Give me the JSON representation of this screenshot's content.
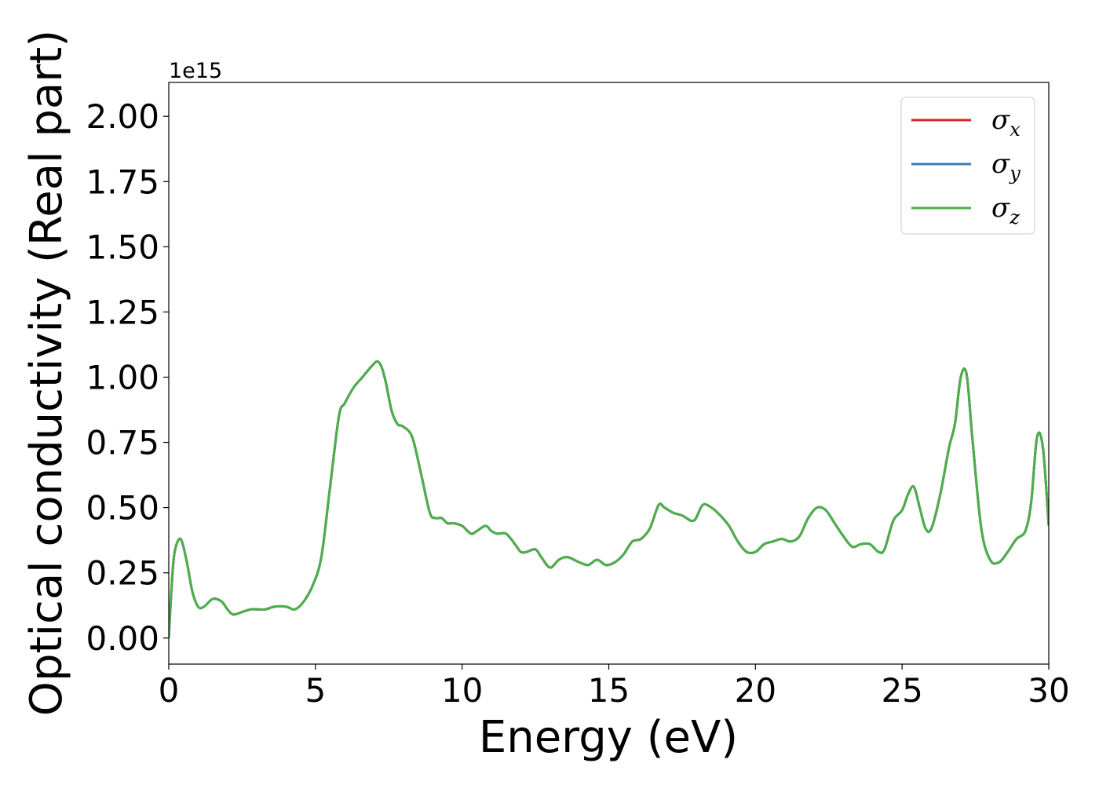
{
  "chart_data": {
    "type": "line",
    "title": "",
    "xlabel": "Energy (eV)",
    "ylabel": "Optical conductivity (Real part)",
    "y_offset_text": "1e15",
    "xlim": [
      0,
      30
    ],
    "ylim": [
      -0.1,
      2.13
    ],
    "x_ticks": [
      0,
      5,
      10,
      15,
      20,
      25,
      30
    ],
    "x_tick_labels": [
      "0",
      "5",
      "10",
      "15",
      "20",
      "25",
      "30"
    ],
    "y_ticks": [
      0,
      0.25,
      0.5,
      0.75,
      1.0,
      1.25,
      1.5,
      1.75,
      2.0
    ],
    "y_tick_labels": [
      "0.00",
      "0.25",
      "0.50",
      "0.75",
      "1.00",
      "1.25",
      "1.50",
      "1.75",
      "2.00"
    ],
    "grid": false,
    "legend_position": "top-right",
    "x": [
      0,
      0.1,
      0.2,
      0.4,
      0.6,
      0.8,
      1.0,
      1.2,
      1.5,
      1.8,
      2.0,
      2.2,
      2.5,
      2.8,
      3.0,
      3.3,
      3.6,
      4.0,
      4.3,
      4.6,
      4.9,
      5.2,
      5.5,
      5.8,
      6.0,
      6.3,
      6.6,
      6.9,
      7.1,
      7.25,
      7.4,
      7.6,
      7.8,
      8.0,
      8.3,
      8.6,
      8.9,
      9.1,
      9.3,
      9.5,
      9.7,
      10.0,
      10.3,
      10.5,
      10.8,
      11.0,
      11.2,
      11.5,
      11.8,
      12.0,
      12.2,
      12.5,
      12.7,
      13.0,
      13.3,
      13.6,
      14.0,
      14.3,
      14.6,
      14.9,
      15.2,
      15.5,
      15.8,
      16.1,
      16.4,
      16.7,
      16.9,
      17.2,
      17.5,
      17.9,
      18.2,
      18.5,
      18.8,
      19.1,
      19.4,
      19.7,
      20.0,
      20.3,
      20.6,
      20.9,
      21.2,
      21.5,
      21.8,
      22.1,
      22.4,
      22.7,
      23.0,
      23.3,
      23.6,
      23.9,
      24.2,
      24.4,
      24.7,
      25.0,
      25.2,
      25.4,
      25.6,
      25.8,
      26.0,
      26.3,
      26.6,
      26.8,
      27.0,
      27.2,
      27.4,
      27.7,
      28.0,
      28.3,
      28.6,
      28.9,
      29.2,
      29.4,
      29.6,
      29.8,
      30.0
    ],
    "series": [
      {
        "name": "σx",
        "color": "#d62728",
        "y": [
          0.0,
          0.2,
          0.33,
          0.38,
          0.3,
          0.18,
          0.12,
          0.12,
          0.15,
          0.14,
          0.11,
          0.09,
          0.1,
          0.11,
          0.11,
          0.11,
          0.12,
          0.12,
          0.11,
          0.14,
          0.2,
          0.31,
          0.58,
          0.85,
          0.9,
          0.96,
          1.0,
          1.04,
          1.06,
          1.04,
          0.98,
          0.87,
          0.82,
          0.81,
          0.77,
          0.63,
          0.48,
          0.46,
          0.46,
          0.44,
          0.44,
          0.43,
          0.4,
          0.41,
          0.43,
          0.41,
          0.4,
          0.4,
          0.36,
          0.33,
          0.33,
          0.34,
          0.31,
          0.27,
          0.3,
          0.31,
          0.29,
          0.28,
          0.3,
          0.28,
          0.29,
          0.32,
          0.37,
          0.38,
          0.42,
          0.51,
          0.5,
          0.48,
          0.47,
          0.45,
          0.51,
          0.5,
          0.47,
          0.43,
          0.37,
          0.33,
          0.33,
          0.36,
          0.37,
          0.38,
          0.37,
          0.39,
          0.46,
          0.5,
          0.49,
          0.44,
          0.39,
          0.35,
          0.36,
          0.36,
          0.33,
          0.34,
          0.45,
          0.49,
          0.55,
          0.58,
          0.5,
          0.42,
          0.42,
          0.55,
          0.73,
          0.82,
          1.0,
          1.01,
          0.76,
          0.42,
          0.3,
          0.29,
          0.33,
          0.38,
          0.41,
          0.52,
          0.77,
          0.73,
          0.43
        ]
      },
      {
        "name": "σy",
        "color": "#377eb8",
        "y": [
          0.0,
          0.2,
          0.33,
          0.38,
          0.3,
          0.18,
          0.12,
          0.12,
          0.15,
          0.14,
          0.11,
          0.09,
          0.1,
          0.11,
          0.11,
          0.11,
          0.12,
          0.12,
          0.11,
          0.14,
          0.2,
          0.31,
          0.58,
          0.85,
          0.9,
          0.96,
          1.0,
          1.04,
          1.06,
          1.04,
          0.98,
          0.87,
          0.82,
          0.81,
          0.77,
          0.63,
          0.48,
          0.46,
          0.46,
          0.44,
          0.44,
          0.43,
          0.4,
          0.41,
          0.43,
          0.41,
          0.4,
          0.4,
          0.36,
          0.33,
          0.33,
          0.34,
          0.31,
          0.27,
          0.3,
          0.31,
          0.29,
          0.28,
          0.3,
          0.28,
          0.29,
          0.32,
          0.37,
          0.38,
          0.42,
          0.51,
          0.5,
          0.48,
          0.47,
          0.45,
          0.51,
          0.5,
          0.47,
          0.43,
          0.37,
          0.33,
          0.33,
          0.36,
          0.37,
          0.38,
          0.37,
          0.39,
          0.46,
          0.5,
          0.49,
          0.44,
          0.39,
          0.35,
          0.36,
          0.36,
          0.33,
          0.34,
          0.45,
          0.49,
          0.55,
          0.58,
          0.5,
          0.42,
          0.42,
          0.55,
          0.73,
          0.82,
          1.0,
          1.01,
          0.76,
          0.42,
          0.3,
          0.29,
          0.33,
          0.38,
          0.41,
          0.52,
          0.77,
          0.73,
          0.43
        ]
      },
      {
        "name": "σz",
        "color": "#4daf4a",
        "y": [
          0.0,
          0.2,
          0.33,
          0.38,
          0.3,
          0.18,
          0.12,
          0.12,
          0.15,
          0.14,
          0.11,
          0.09,
          0.1,
          0.11,
          0.11,
          0.11,
          0.12,
          0.12,
          0.11,
          0.14,
          0.2,
          0.31,
          0.58,
          0.85,
          0.9,
          0.96,
          1.0,
          1.04,
          1.06,
          1.04,
          0.98,
          0.87,
          0.82,
          0.81,
          0.77,
          0.63,
          0.48,
          0.46,
          0.46,
          0.44,
          0.44,
          0.43,
          0.4,
          0.41,
          0.43,
          0.41,
          0.4,
          0.4,
          0.36,
          0.33,
          0.33,
          0.34,
          0.31,
          0.27,
          0.3,
          0.31,
          0.29,
          0.28,
          0.3,
          0.28,
          0.29,
          0.32,
          0.37,
          0.38,
          0.42,
          0.51,
          0.5,
          0.48,
          0.47,
          0.45,
          0.51,
          0.5,
          0.47,
          0.43,
          0.37,
          0.33,
          0.33,
          0.36,
          0.37,
          0.38,
          0.37,
          0.39,
          0.46,
          0.5,
          0.49,
          0.44,
          0.39,
          0.35,
          0.36,
          0.36,
          0.33,
          0.34,
          0.45,
          0.49,
          0.55,
          0.58,
          0.5,
          0.42,
          0.42,
          0.55,
          0.73,
          0.82,
          1.0,
          1.01,
          0.76,
          0.42,
          0.3,
          0.29,
          0.33,
          0.38,
          0.41,
          0.52,
          0.77,
          0.73,
          0.43
        ]
      }
    ],
    "legend": [
      {
        "symbol": "σ",
        "subscript": "x"
      },
      {
        "symbol": "σ",
        "subscript": "y"
      },
      {
        "symbol": "σ",
        "subscript": "z"
      }
    ]
  }
}
